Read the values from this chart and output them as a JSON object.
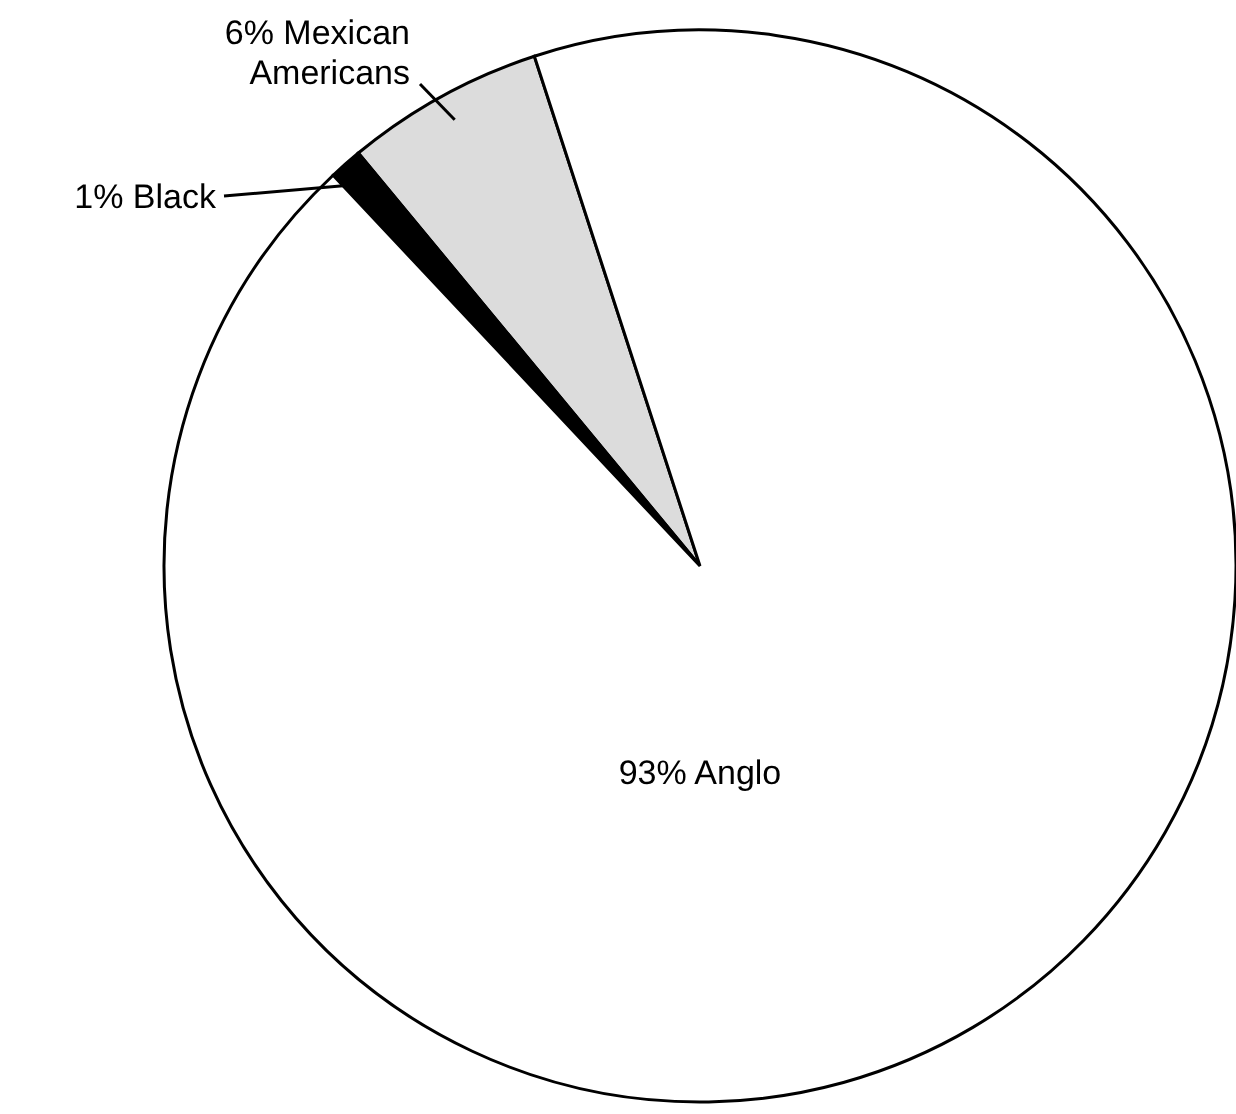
{
  "chart_data": {
    "type": "pie",
    "categories": [
      "Mexican Americans",
      "Black",
      "Anglo"
    ],
    "values": [
      6,
      1,
      93
    ],
    "value_labels": [
      "6%",
      "1%",
      "93%"
    ],
    "colors": [
      "#dcdcdc",
      "#000000",
      "#ffffff"
    ]
  }
}
